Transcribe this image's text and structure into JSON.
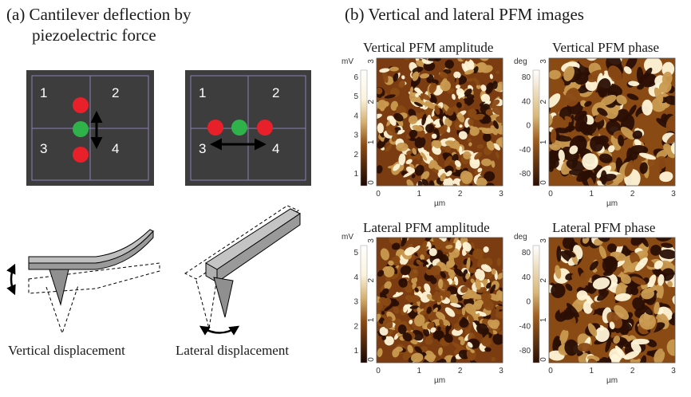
{
  "panel_a": {
    "heading_line1": "(a) Cantilever deflection by",
    "heading_line2": "piezoelectric force",
    "quadrant_labels": [
      "1",
      "2",
      "3",
      "4"
    ],
    "caption_vertical": "Vertical displacement",
    "caption_lateral": "Lateral displacement",
    "colors": {
      "detector_bg": "#3d3d3d",
      "grid_line": "#8c7fb8",
      "dot_red": "#e8202a",
      "dot_green": "#2fb24a",
      "cantilever": "#bfbfbf"
    }
  },
  "panel_b": {
    "heading": "(b) Vertical and lateral PFM images",
    "images": [
      {
        "title": "Vertical PFM amplitude",
        "scale_unit": "mV",
        "scale_ticks": [
          "6",
          "5",
          "4",
          "3",
          "2",
          "1"
        ],
        "scale_type": "amplitude",
        "y_ticks": [
          "3",
          "2",
          "1",
          "0"
        ],
        "x_ticks": [
          "0",
          "1",
          "2",
          "3"
        ],
        "x_unit": "µm"
      },
      {
        "title": "Vertical PFM phase",
        "scale_unit": "deg",
        "scale_ticks": [
          "80",
          "40",
          "0",
          "-40",
          "-80"
        ],
        "scale_type": "phase",
        "y_ticks": [
          "3",
          "2",
          "1",
          "0"
        ],
        "x_ticks": [
          "0",
          "1",
          "2",
          "3"
        ],
        "x_unit": "µm"
      },
      {
        "title": "Lateral PFM amplitude",
        "scale_unit": "mV",
        "scale_ticks": [
          "5",
          "4",
          "3",
          "2",
          "1"
        ],
        "scale_type": "amplitude",
        "y_ticks": [
          "3",
          "2",
          "1",
          "0"
        ],
        "x_ticks": [
          "0",
          "1",
          "2",
          "3"
        ],
        "x_unit": "µm"
      },
      {
        "title": "Lateral PFM phase",
        "scale_unit": "deg",
        "scale_ticks": [
          "80",
          "40",
          "0",
          "-40",
          "-80"
        ],
        "scale_type": "phase",
        "y_ticks": [
          "3",
          "2",
          "1",
          "0"
        ],
        "x_ticks": [
          "0",
          "1",
          "2",
          "3"
        ],
        "x_unit": "µm"
      }
    ],
    "colors": {
      "dark": "#2a0f04",
      "mid": "#8a4a14",
      "light": "#c99a50",
      "bright": "#fff6d8"
    }
  }
}
